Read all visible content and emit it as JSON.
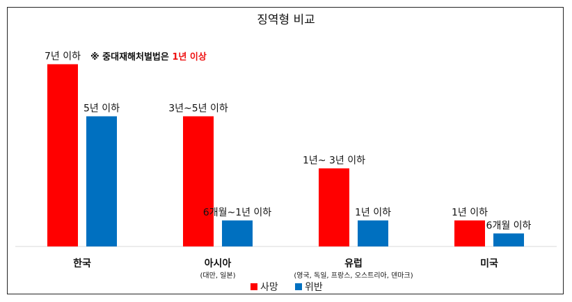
{
  "chart_data": {
    "type": "bar",
    "title": "징역형 비교",
    "categories": [
      "한국",
      "아시아",
      "유럽",
      "미국"
    ],
    "category_sublabels": [
      "",
      "(대만, 일본)",
      "(영국, 독일, 프랑스, 오스트리아, 덴마크)",
      ""
    ],
    "series": [
      {
        "name": "사망",
        "color": "#ff0000",
        "values": [
          7,
          5,
          3,
          1
        ],
        "labels": [
          "7년 이하",
          "3년~5년 이하",
          "1년~ 3년 이하",
          "1년 이하"
        ]
      },
      {
        "name": "위반",
        "color": "#0070c0",
        "values": [
          5,
          1,
          1,
          0.5
        ],
        "labels": [
          "5년 이하",
          "6개월~1년 이하",
          "1년 이하",
          "6개월 이하"
        ]
      }
    ],
    "annotation": {
      "prefix": "※ 중대재해처벌법은 ",
      "highlight": "1년 이상",
      "highlight_color": "#ee1111"
    },
    "legend_position": "bottom",
    "grid": false
  }
}
